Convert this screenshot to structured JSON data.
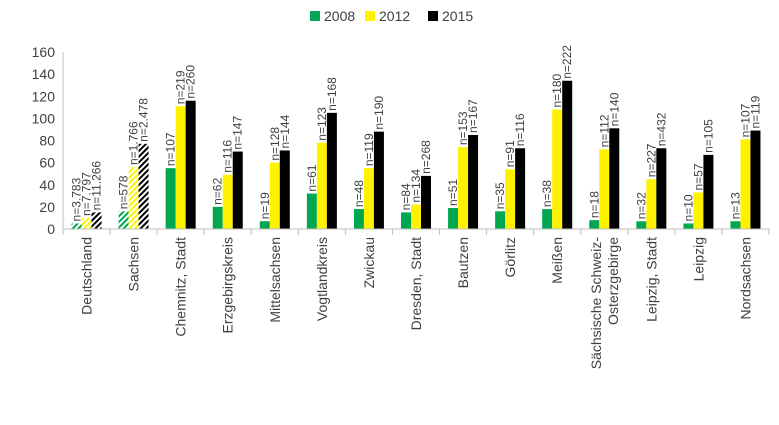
{
  "chart_data": {
    "type": "bar",
    "title": "",
    "xlabel": "",
    "ylabel": "",
    "ylim": [
      0,
      160
    ],
    "yticks": [
      "0",
      "20",
      "40",
      "60",
      "80",
      "100",
      "120",
      "140",
      "160"
    ],
    "grid": false,
    "legend_position": "top",
    "categories": [
      "Deutschland",
      "Sachsen",
      "Chemnitz, Stadt",
      "Erzgebirgskreis",
      "Mittelsachsen",
      "Vogtlandkreis",
      "Zwickau",
      "Dresden, Stadt",
      "Bautzen",
      "Görlitz",
      "Meißen",
      "Sächsische Schweiz-Osterzgebirge",
      "Leipzig, Stadt",
      "Leipzig",
      "Nordsachsen"
    ],
    "category_lines": [
      [
        "Deutschland"
      ],
      [
        "Sachsen"
      ],
      [
        "Chemnitz, Stadt"
      ],
      [
        "Erzgebirgskreis"
      ],
      [
        "Mittelsachsen"
      ],
      [
        "Vogtlandkreis"
      ],
      [
        "Zwickau"
      ],
      [
        "Dresden, Stadt"
      ],
      [
        "Bautzen"
      ],
      [
        "Görlitz"
      ],
      [
        "Meißen"
      ],
      [
        "Sächsische Schweiz-",
        "Osterzgebirge"
      ],
      [
        "Leipzig, Stadt"
      ],
      [
        "Leipzig"
      ],
      [
        "Nordsachsen"
      ]
    ],
    "series": [
      {
        "name": "2008",
        "color": "#00A650",
        "values": [
          5,
          16,
          55,
          20,
          7,
          32,
          18,
          15,
          19,
          16,
          18,
          8,
          7,
          5,
          7
        ],
        "labels": [
          "n=3.783",
          "n=578",
          "n=107",
          "n=62",
          "n=19",
          "n=61",
          "n=48",
          "n=84",
          "n=51",
          "n=35",
          "n=38",
          "n=18",
          "n=32",
          "n=10",
          "n=13"
        ]
      },
      {
        "name": "2012",
        "color": "#FFF200",
        "values": [
          10,
          56,
          111,
          49,
          60,
          78,
          55,
          22,
          74,
          54,
          108,
          72,
          45,
          33,
          81
        ],
        "labels": [
          "n=7.797",
          "n=1.766",
          "n=219",
          "n=116",
          "n=128",
          "n=123",
          "n=119",
          "n=134",
          "n=153",
          "n=91",
          "n=180",
          "n=112",
          "n=227",
          "n=57",
          "n=107"
        ]
      },
      {
        "name": "2015",
        "color": "#000000",
        "values": [
          15,
          77,
          116,
          70,
          71,
          105,
          88,
          48,
          85,
          73,
          134,
          91,
          73,
          67,
          89
        ],
        "labels": [
          "n=11.266",
          "n=2.478",
          "n=260",
          "n=147",
          "n=144",
          "n=168",
          "n=190",
          "n=268",
          "n=167",
          "n=116",
          "n=222",
          "n=140",
          "n=432",
          "n=105",
          "n=119"
        ]
      }
    ],
    "hatched_categories": [
      "Deutschland",
      "Sachsen"
    ]
  }
}
